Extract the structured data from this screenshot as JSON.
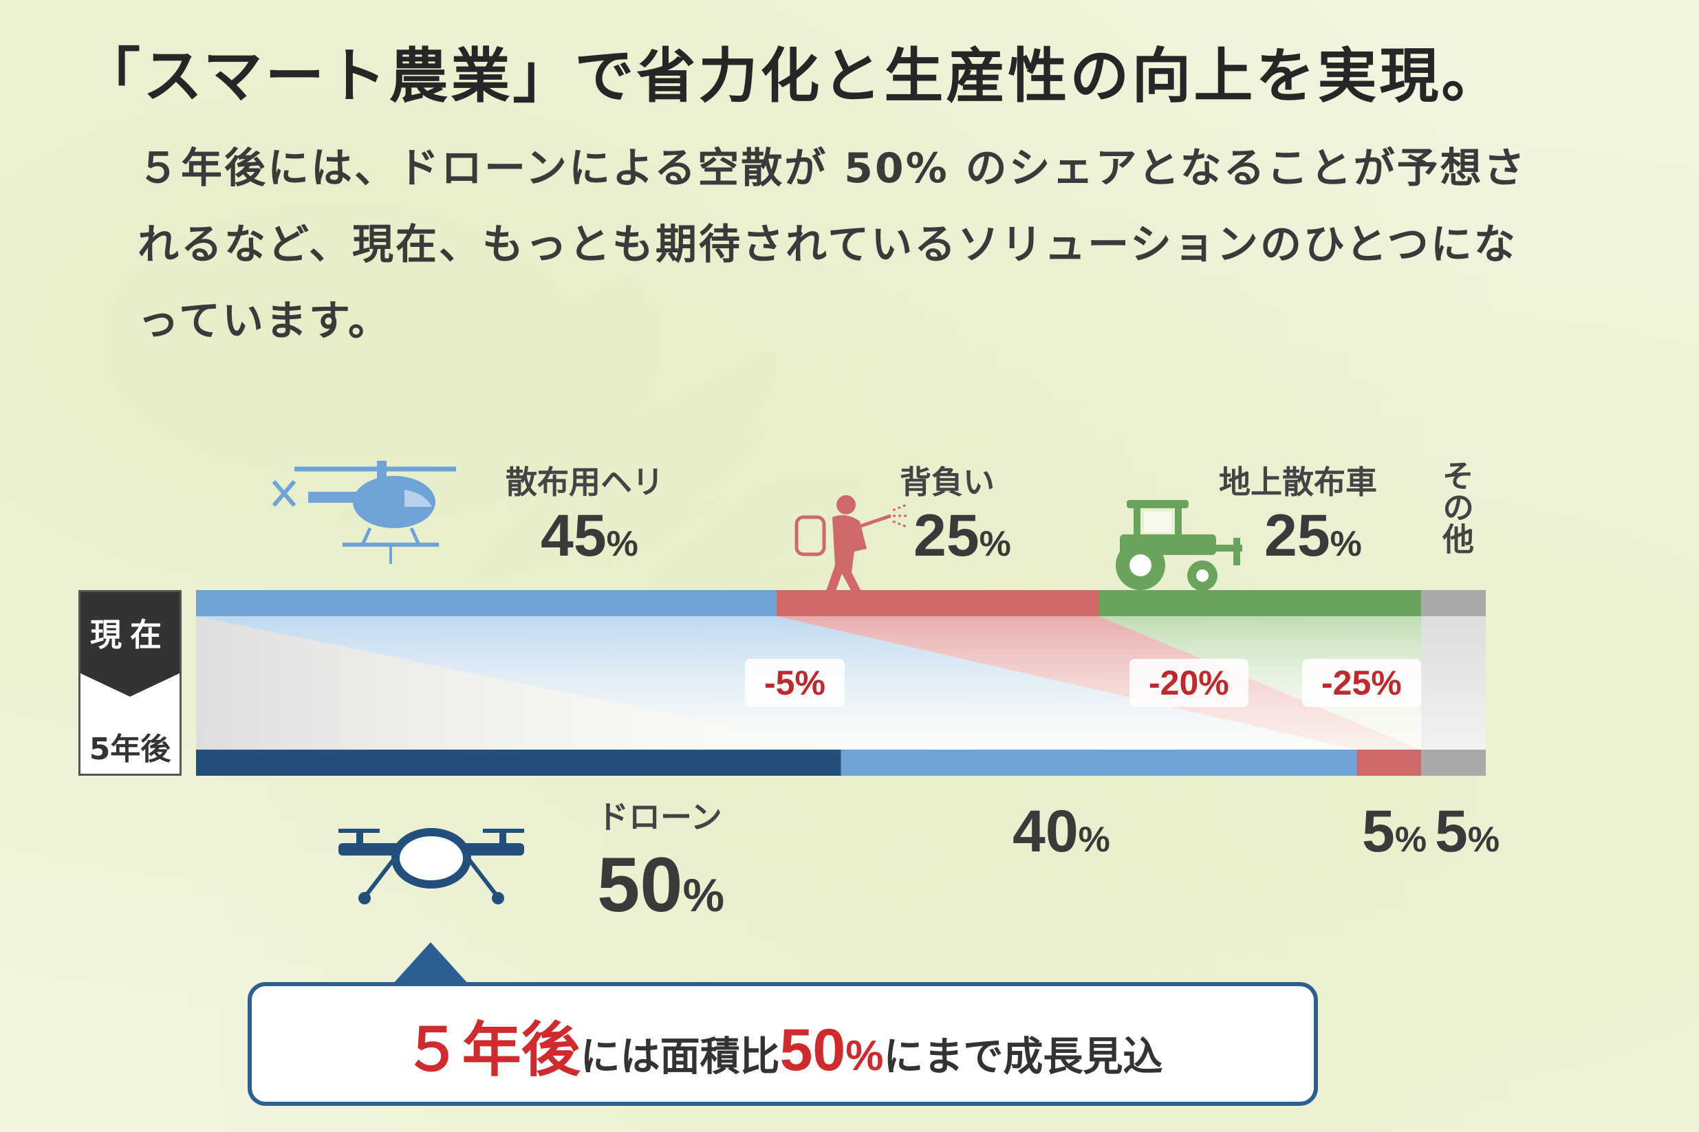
{
  "title": "「スマート農業」で省力化と生産性の向上を実現。",
  "intro": "５年後には、ドローンによる空散が 50% のシェアとなることが予想されるなど、現在、もっとも期待されているソリューションのひとつになっています。",
  "side": {
    "now": "現在",
    "later": "5年後"
  },
  "chart_data": {
    "type": "bar",
    "orientation": "horizontal-stacked",
    "categories": [
      "現在",
      "5年後"
    ],
    "unit": "%",
    "series": [
      {
        "name": "ドローン",
        "values": [
          0,
          50
        ],
        "color": "#234f7d"
      },
      {
        "name": "散布用ヘリ",
        "values": [
          45,
          40
        ],
        "color": "#6fa3d8"
      },
      {
        "name": "背負い",
        "values": [
          25,
          5
        ],
        "color": "#d0686a"
      },
      {
        "name": "地上散布車",
        "values": [
          25,
          0
        ],
        "color": "#69a35c"
      },
      {
        "name": "その他",
        "values": [
          5,
          5
        ],
        "color": "#a9a9a9"
      }
    ],
    "current_labels": [
      {
        "name": "散布用ヘリ",
        "value": "45"
      },
      {
        "name": "背負い",
        "value": "25"
      },
      {
        "name": "地上散布車",
        "value": "25"
      },
      {
        "name": "その他",
        "value": ""
      }
    ],
    "future_labels": [
      {
        "name": "ドローン",
        "value": "50"
      },
      {
        "name": "",
        "value": "40"
      },
      {
        "name": "",
        "value": "5"
      },
      {
        "name": "",
        "value": "5"
      }
    ],
    "deltas": [
      "-5%",
      "-20%",
      "-25%"
    ],
    "unit_symbol": "%"
  },
  "callout": {
    "years": "５年後",
    "text1": "には面積比",
    "value": "50",
    "unit": "%",
    "text2": "にまで成長見込"
  },
  "icons": [
    "helicopter-icon",
    "backpack-sprayer-icon",
    "tractor-icon",
    "drone-icon"
  ]
}
